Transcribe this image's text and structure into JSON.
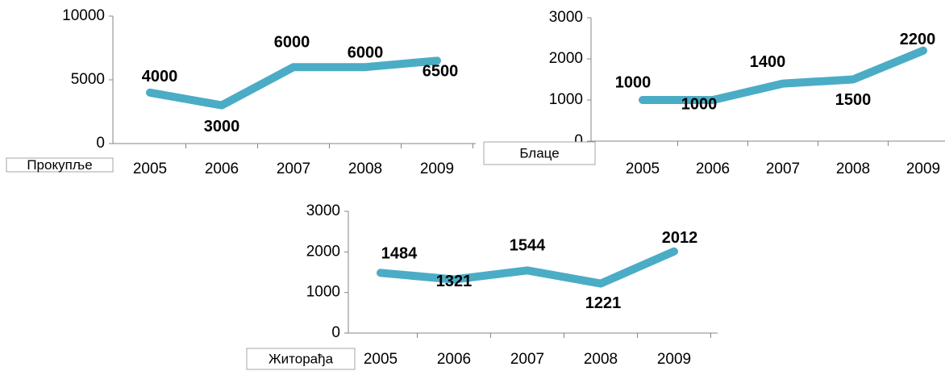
{
  "chart_data": [
    {
      "type": "line",
      "categories": [
        "2005",
        "2006",
        "2007",
        "2008",
        "2009"
      ],
      "series": [
        {
          "name": "Прокупље",
          "color": "#4bacc6",
          "values": [
            4000,
            3000,
            6000,
            6000,
            6500
          ]
        }
      ],
      "ylim": [
        0,
        10000
      ],
      "yticks": [
        0,
        5000,
        10000
      ]
    },
    {
      "type": "line",
      "categories": [
        "2005",
        "2006",
        "2007",
        "2008",
        "2009"
      ],
      "series": [
        {
          "name": "Блаце",
          "color": "#4bacc6",
          "values": [
            1000,
            1000,
            1400,
            1500,
            2200
          ]
        }
      ],
      "ylim": [
        0,
        3000
      ],
      "yticks": [
        0,
        1000,
        2000,
        3000
      ]
    },
    {
      "type": "line",
      "categories": [
        "2005",
        "2006",
        "2007",
        "2008",
        "2009"
      ],
      "series": [
        {
          "name": "Житорађа",
          "color": "#4bacc6",
          "values": [
            1484,
            1321,
            1544,
            1221,
            2012
          ]
        }
      ],
      "ylim": [
        0,
        3000
      ],
      "yticks": [
        0,
        1000,
        2000,
        3000
      ]
    }
  ]
}
